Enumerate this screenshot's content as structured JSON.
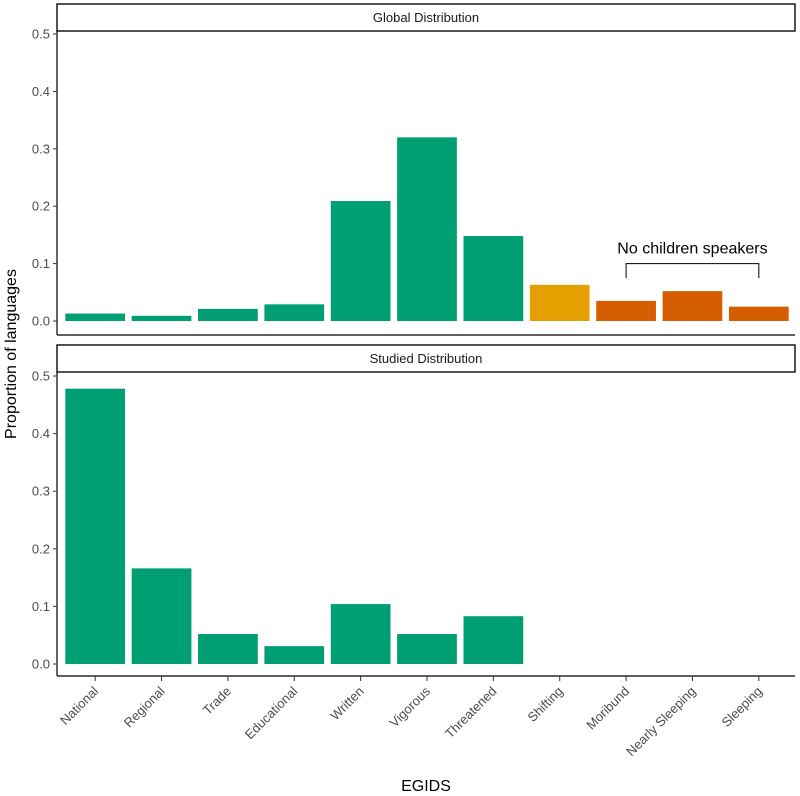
{
  "chart_data": {
    "type": "bar",
    "xlabel": "EGIDS",
    "ylabel": "Proportion of languages",
    "categories": [
      "National",
      "Regional",
      "Trade",
      "Educational",
      "Written",
      "Vigorous",
      "Threatened",
      "Shifting",
      "Moribund",
      "Nearly Sleeping",
      "Sleeping"
    ],
    "ylim": [
      0,
      0.5
    ],
    "yticks": [
      "0.0",
      "0.1",
      "0.2",
      "0.3",
      "0.4",
      "0.5"
    ],
    "colors": {
      "green": "#009E73",
      "orange": "#E69F00",
      "vermillion": "#D55E00"
    },
    "panels": [
      {
        "title": "Global Distribution",
        "values": [
          0.013,
          0.009,
          0.021,
          0.029,
          0.209,
          0.32,
          0.148,
          0.063,
          0.035,
          0.052,
          0.025
        ],
        "bar_colors": [
          "green",
          "green",
          "green",
          "green",
          "green",
          "green",
          "green",
          "orange",
          "vermillion",
          "vermillion",
          "vermillion"
        ],
        "annotation": {
          "text": "No children speakers",
          "from_category": "Moribund",
          "to_category": "Sleeping"
        }
      },
      {
        "title": "Studied Distribution",
        "values": [
          0.478,
          0.166,
          0.052,
          0.031,
          0.104,
          0.052,
          0.083,
          0,
          0,
          0,
          0
        ],
        "bar_colors": [
          "green",
          "green",
          "green",
          "green",
          "green",
          "green",
          "green",
          "green",
          "green",
          "green",
          "green"
        ]
      }
    ]
  }
}
